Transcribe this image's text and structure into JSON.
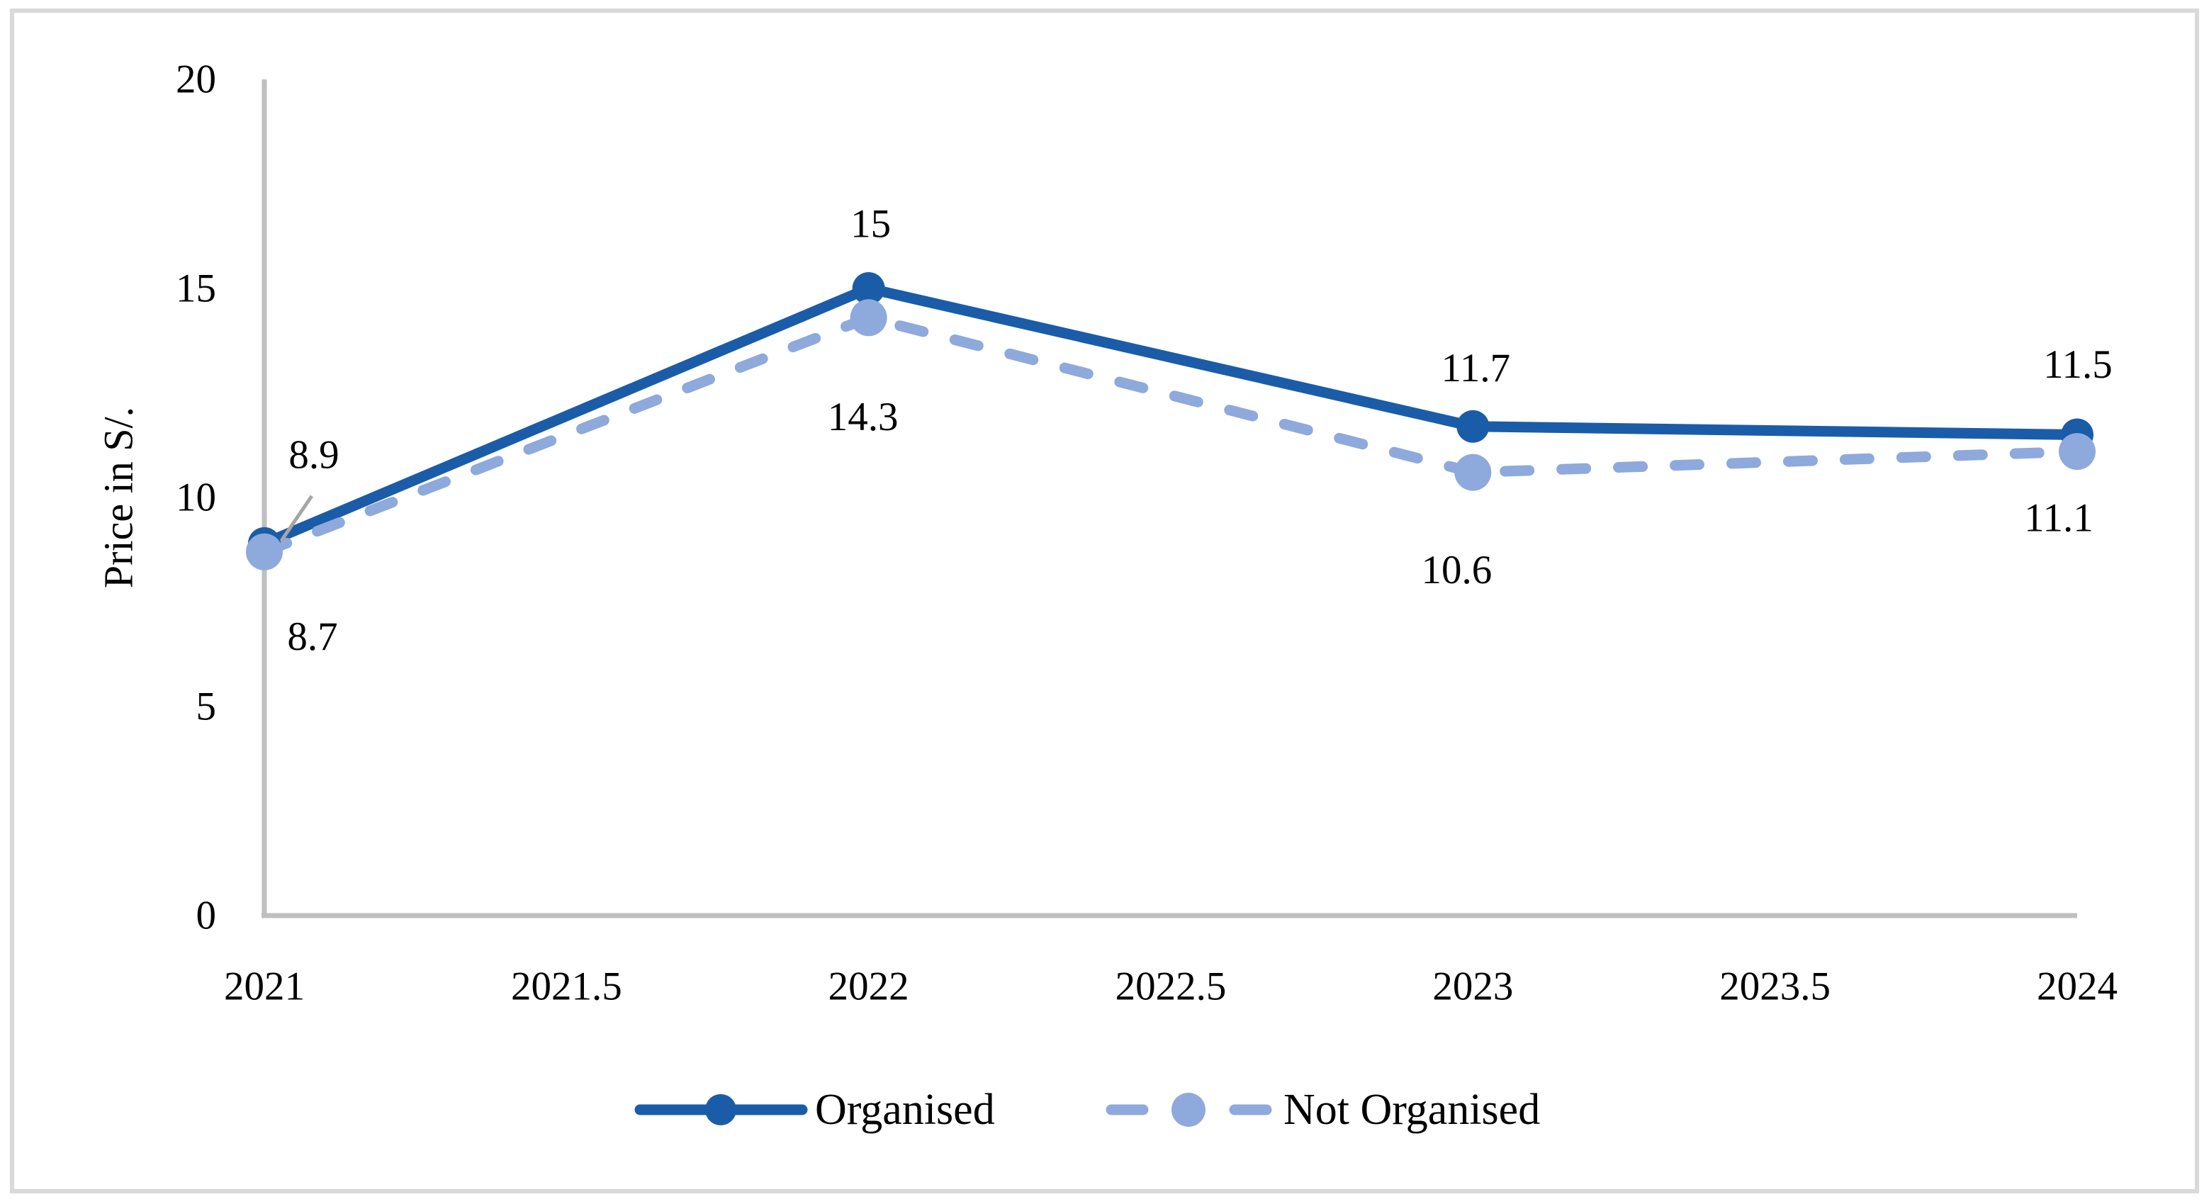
{
  "figure": {
    "background_color": "#ffffff",
    "border_color": "#d9d9d9"
  },
  "chart_data": {
    "type": "line",
    "title": "",
    "xlabel": "",
    "ylabel": "Price in  S/.",
    "x": [
      2021,
      2022,
      2023,
      2024
    ],
    "xlim": [
      2021,
      2024
    ],
    "ylim": [
      0,
      20
    ],
    "grid": false,
    "legend_position": "bottom",
    "x_ticks": [
      "2021",
      "2021.5",
      "2022",
      "2022.5",
      "2023",
      "2023.5",
      "2024"
    ],
    "y_ticks": [
      "0",
      "5",
      "10",
      "15",
      "20"
    ],
    "axis_color": "#bfbfbf",
    "leader_color": "#a6a6a6",
    "label_color": "#000000",
    "series": [
      {
        "name": "Organised",
        "values": [
          8.9,
          15,
          11.7,
          11.5
        ],
        "point_labels": [
          "8.9",
          "15",
          "11.7",
          "11.5"
        ],
        "color": "#1b5ca8",
        "style": "solid",
        "marker": "circle",
        "label_offsets": [
          [
            70,
            -125
          ],
          [
            3,
            -91
          ],
          [
            4,
            -82
          ],
          [
            1,
            -99
          ]
        ]
      },
      {
        "name": "Not Organised",
        "values": [
          8.7,
          14.3,
          10.6,
          11.1
        ],
        "point_labels": [
          "8.7",
          "14.3",
          "10.6",
          "11.1"
        ],
        "color": "#8ea9db",
        "style": "dashed",
        "marker": "circle",
        "label_offsets": [
          [
            68,
            120
          ],
          [
            -8,
            140
          ],
          [
            -23,
            138
          ],
          [
            -26,
            94
          ]
        ]
      }
    ],
    "leader_line": {
      "series": 0,
      "index": 0,
      "from_offset": [
        67,
        -67
      ],
      "to_offset": [
        7,
        21
      ]
    }
  }
}
